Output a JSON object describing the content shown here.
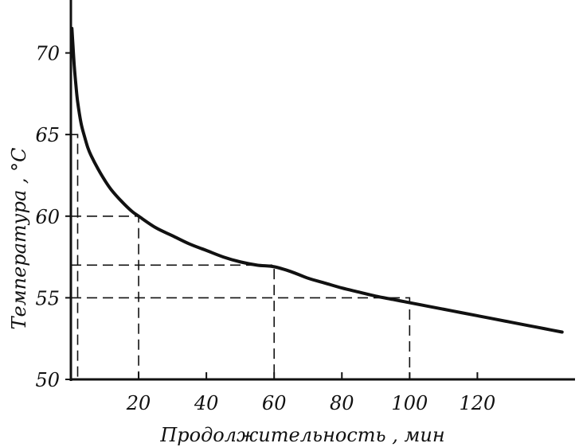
{
  "chart_data": {
    "type": "line",
    "xlabel": "Продолжительность , мин",
    "ylabel": "Температура , °С",
    "xlim": [
      0,
      150
    ],
    "ylim": [
      50,
      73
    ],
    "x_ticks": [
      20,
      40,
      60,
      80,
      100,
      120
    ],
    "x_tick_labels": [
      "20",
      "40",
      "60",
      "80",
      100,
      "120"
    ],
    "y_ticks": [
      50,
      55,
      60,
      65,
      70
    ],
    "y_tick_labels": [
      "50",
      "55",
      "60",
      "65",
      "70"
    ],
    "grid": false,
    "series": [
      {
        "x": [
          0.3,
          0.6,
          1,
          1.5,
          2,
          3,
          4,
          5,
          6,
          8,
          10,
          12,
          15,
          18,
          20,
          25,
          30,
          35,
          40,
          45,
          50,
          55,
          60,
          65,
          70,
          75,
          80,
          85,
          90,
          95,
          100,
          105,
          110,
          115,
          120,
          125,
          130,
          135,
          140,
          145
        ],
        "y": [
          71.5,
          70.5,
          69.2,
          68.0,
          67.0,
          65.7,
          64.9,
          64.2,
          63.7,
          62.9,
          62.2,
          61.6,
          60.9,
          60.3,
          60.0,
          59.3,
          58.8,
          58.3,
          57.9,
          57.5,
          57.2,
          57.0,
          56.9,
          56.6,
          56.2,
          55.9,
          55.6,
          55.35,
          55.1,
          54.9,
          54.7,
          54.5,
          54.3,
          54.1,
          53.9,
          53.7,
          53.5,
          53.3,
          53.1,
          52.9
        ]
      }
    ],
    "guides": [
      {
        "x": 2,
        "y": 65
      },
      {
        "x": 20,
        "y": 60
      },
      {
        "x": 60,
        "y": 57
      },
      {
        "x": 100,
        "y": 55
      }
    ]
  }
}
